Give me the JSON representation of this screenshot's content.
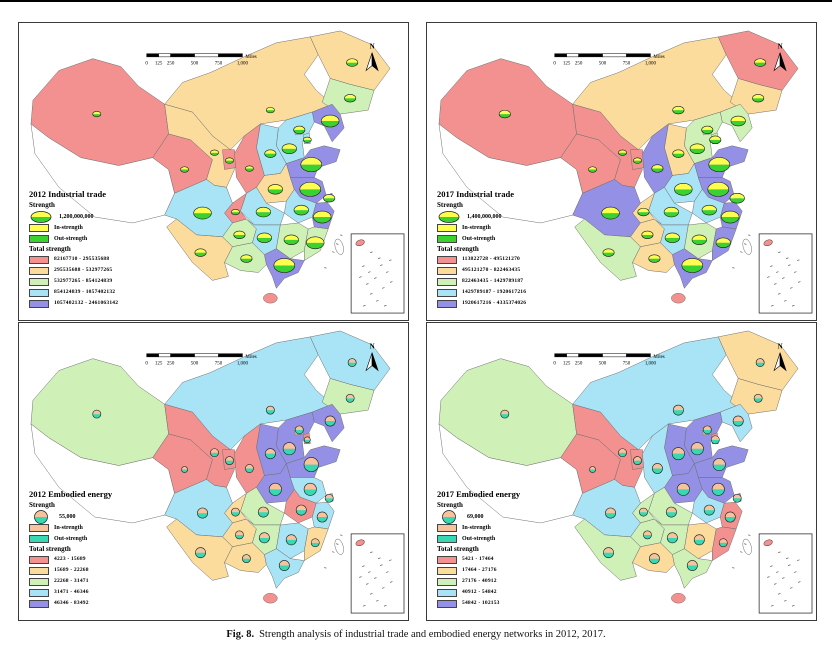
{
  "caption": {
    "label": "Fig. 8.",
    "text": "Strength analysis of industrial trade and embodied energy networks in 2012, 2017."
  },
  "north_label": "N",
  "scalebar": {
    "ticks": [
      "0",
      "125",
      "250",
      "500",
      "750",
      "1,000"
    ],
    "unit": "Miles"
  },
  "panels": [
    {
      "id": "2012-industrial-trade",
      "title": "2012 Industrial trade",
      "strength_label": "Strength",
      "strength_value": "1,200,000,000",
      "in_label": "In-strength",
      "out_label": "Out-strength",
      "in_color": "#FCFD4E",
      "out_color": "#3BD230",
      "total_label": "Total strength",
      "symbol_shape": "ellipse",
      "classes": [
        {
          "color": "#F2918F",
          "range": "82167710 - 295535688"
        },
        {
          "color": "#FBDC9C",
          "range": "295535688 - 532977265"
        },
        {
          "color": "#CFF1B8",
          "range": "532977265 - 854124839"
        },
        {
          "color": "#A8E4F6",
          "range": "854124839 - 1057402132"
        },
        {
          "color": "#9390E6",
          "range": "1057402132 - 2461063142"
        }
      ],
      "regions": {
        "xinjiang": 0,
        "tibet": -1,
        "qinghai": 0,
        "gansu": 1,
        "ningxia": 0,
        "inner_mongolia": 1,
        "heilongjiang": 1,
        "jilin": 2,
        "liaoning": 4,
        "hebei": 3,
        "beijing": 3,
        "tianjin": 3,
        "shanxi": 3,
        "shandong": 4,
        "henan": 1,
        "shaanxi": 0,
        "jiangsu": 4,
        "shanghai": 4,
        "anhui": 3,
        "hubei": 3,
        "chongqing": 0,
        "sichuan": 3,
        "guizhou": 2,
        "yunnan": 1,
        "hunan": 3,
        "jiangxi": 2,
        "zhejiang": 4,
        "fujian": 2,
        "guangdong": 4,
        "guangxi": 2,
        "hainan": 0,
        "taiwan": -1
      },
      "symbols": {
        "xinjiang": 1,
        "qinghai": 1,
        "gansu": 1,
        "ningxia": 1,
        "inner_mongolia": 1,
        "heilongjiang": 2,
        "jilin": 2,
        "liaoning": 4,
        "beijing": 2,
        "tianjin": 1,
        "hebei": 3,
        "shanxi": 2,
        "shandong": 5,
        "henan": 3,
        "shaanxi": 1,
        "jiangsu": 5,
        "shanghai": 2,
        "anhui": 3,
        "hubei": 3,
        "chongqing": 1,
        "sichuan": 4,
        "guizhou": 2,
        "yunnan": 2,
        "hunan": 3,
        "jiangxi": 3,
        "zhejiang": 4,
        "fujian": 4,
        "guangdong": 5,
        "guangxi": 2
      }
    },
    {
      "id": "2017-industrial-trade",
      "title": "2017 Industrial trade",
      "strength_label": "Strength",
      "strength_value": "1,400,000,000",
      "in_label": "In-strength",
      "out_label": "Out-strength",
      "in_color": "#FCFD4E",
      "out_color": "#3BD230",
      "total_label": "Total strength",
      "symbol_shape": "ellipse",
      "classes": [
        {
          "color": "#F2918F",
          "range": "113822728 - 495121270"
        },
        {
          "color": "#FBDC9C",
          "range": "495121270 - 822463435"
        },
        {
          "color": "#CFF1B8",
          "range": "822463435 - 1429789187"
        },
        {
          "color": "#A8E4F6",
          "range": "1429789187 - 1920617216"
        },
        {
          "color": "#9390E6",
          "range": "1920617216 - 4335374026"
        }
      ],
      "regions": {
        "xinjiang": 0,
        "tibet": -1,
        "qinghai": 0,
        "gansu": 0,
        "ningxia": 0,
        "inner_mongolia": 1,
        "heilongjiang": 0,
        "jilin": 1,
        "liaoning": 2,
        "hebei": 2,
        "beijing": 2,
        "tianjin": 2,
        "shanxi": 1,
        "shandong": 4,
        "henan": 3,
        "shaanxi": 4,
        "jiangsu": 4,
        "shanghai": 4,
        "anhui": 3,
        "hubei": 3,
        "chongqing": 1,
        "sichuan": 4,
        "guizhou": 1,
        "yunnan": 2,
        "hunan": 3,
        "jiangxi": 2,
        "zhejiang": 4,
        "fujian": 4,
        "guangdong": 4,
        "guangxi": 1,
        "hainan": 0,
        "taiwan": -1
      },
      "symbols": {
        "xinjiang": 2,
        "qinghai": 1,
        "gansu": 1,
        "ningxia": 1,
        "inner_mongolia": 2,
        "heilongjiang": 2,
        "jilin": 2,
        "liaoning": 3,
        "beijing": 2,
        "tianjin": 2,
        "hebei": 3,
        "shanxi": 2,
        "shandong": 5,
        "henan": 4,
        "shaanxi": 2,
        "jiangsu": 5,
        "shanghai": 3,
        "anhui": 3,
        "hubei": 3,
        "chongqing": 2,
        "sichuan": 4,
        "guizhou": 2,
        "yunnan": 2,
        "hunan": 3,
        "jiangxi": 3,
        "zhejiang": 4,
        "fujian": 3,
        "guangdong": 5,
        "guangxi": 2
      }
    },
    {
      "id": "2012-embodied-energy",
      "title": "2012 Embodied energy",
      "strength_label": "Strength",
      "strength_value": "55,000",
      "in_label": "In-strength",
      "out_label": "Out-strength",
      "in_color": "#F6C39C",
      "out_color": "#38D8B2",
      "total_label": "Total strength",
      "symbol_shape": "circle",
      "classes": [
        {
          "color": "#F2918F",
          "range": "4223 - 15689"
        },
        {
          "color": "#FBDC9C",
          "range": "15689 - 22268"
        },
        {
          "color": "#CFF1B8",
          "range": "22268 - 31471"
        },
        {
          "color": "#A8E4F6",
          "range": "31471 - 46346"
        },
        {
          "color": "#9390E6",
          "range": "46346 - 83492"
        }
      ],
      "regions": {
        "xinjiang": 2,
        "tibet": -1,
        "qinghai": 0,
        "gansu": 0,
        "ningxia": 0,
        "inner_mongolia": 3,
        "heilongjiang": 3,
        "jilin": 2,
        "liaoning": 4,
        "hebei": 4,
        "beijing": 1,
        "tianjin": 0,
        "shanxi": 4,
        "shandong": 4,
        "henan": 4,
        "shaanxi": 0,
        "jiangsu": 3,
        "shanghai": 3,
        "anhui": 0,
        "hubei": 2,
        "chongqing": 1,
        "sichuan": 3,
        "guizhou": 1,
        "yunnan": 1,
        "hunan": 2,
        "jiangxi": 3,
        "zhejiang": 3,
        "fujian": 1,
        "guangdong": 3,
        "guangxi": 1,
        "hainan": 0,
        "taiwan": -1
      },
      "symbols": {
        "xinjiang": 2,
        "qinghai": 1,
        "gansu": 2,
        "ningxia": 2,
        "inner_mongolia": 2,
        "heilongjiang": 2,
        "jilin": 2,
        "liaoning": 3,
        "beijing": 2,
        "tianjin": 1,
        "hebei": 4,
        "shanxi": 3,
        "shandong": 5,
        "henan": 4,
        "shaanxi": 2,
        "jiangsu": 4,
        "shanghai": 2,
        "anhui": 3,
        "hubei": 3,
        "chongqing": 2,
        "sichuan": 3,
        "guizhou": 2,
        "yunnan": 3,
        "hunan": 3,
        "jiangxi": 3,
        "zhejiang": 3,
        "fujian": 2,
        "guangdong": 3,
        "guangxi": 2
      }
    },
    {
      "id": "2017-embodied-energy",
      "title": "2017 Embodied energy",
      "strength_label": "Strength",
      "strength_value": "69,000",
      "in_label": "In-strength",
      "out_label": "Out-strength",
      "in_color": "#F6C39C",
      "out_color": "#38D8B2",
      "total_label": "Total strength",
      "symbol_shape": "circle",
      "classes": [
        {
          "color": "#F2918F",
          "range": "5421 - 17464"
        },
        {
          "color": "#FBDC9C",
          "range": "17464 - 27176"
        },
        {
          "color": "#CFF1B8",
          "range": "27176 - 40912"
        },
        {
          "color": "#A8E4F6",
          "range": "40912 - 54842"
        },
        {
          "color": "#9390E6",
          "range": "54842 - 102153"
        }
      ],
      "regions": {
        "xinjiang": 2,
        "tibet": -1,
        "qinghai": 0,
        "gansu": 0,
        "ningxia": 0,
        "inner_mongolia": 3,
        "heilongjiang": 1,
        "jilin": 1,
        "liaoning": 3,
        "hebei": 4,
        "beijing": 1,
        "tianjin": 0,
        "shanxi": 4,
        "shandong": 4,
        "henan": 4,
        "shaanxi": 3,
        "jiangsu": 4,
        "shanghai": 4,
        "anhui": 3,
        "hubei": 2,
        "chongqing": 2,
        "sichuan": 3,
        "guizhou": 2,
        "yunnan": 2,
        "hunan": 2,
        "jiangxi": 1,
        "zhejiang": 0,
        "fujian": 0,
        "guangdong": 2,
        "guangxi": 1,
        "hainan": 0,
        "taiwan": -1
      },
      "symbols": {
        "xinjiang": 2,
        "qinghai": 1,
        "gansu": 2,
        "ningxia": 2,
        "inner_mongolia": 3,
        "heilongjiang": 2,
        "jilin": 2,
        "liaoning": 3,
        "beijing": 2,
        "tianjin": 2,
        "hebei": 4,
        "shanxi": 4,
        "shandong": 4,
        "henan": 4,
        "shaanxi": 3,
        "jiangsu": 4,
        "shanghai": 2,
        "anhui": 3,
        "hubei": 3,
        "chongqing": 2,
        "sichuan": 3,
        "guizhou": 2,
        "yunnan": 3,
        "hunan": 3,
        "jiangxi": 3,
        "zhejiang": 3,
        "fujian": 2,
        "guangdong": 3,
        "guangxi": 3
      }
    }
  ]
}
